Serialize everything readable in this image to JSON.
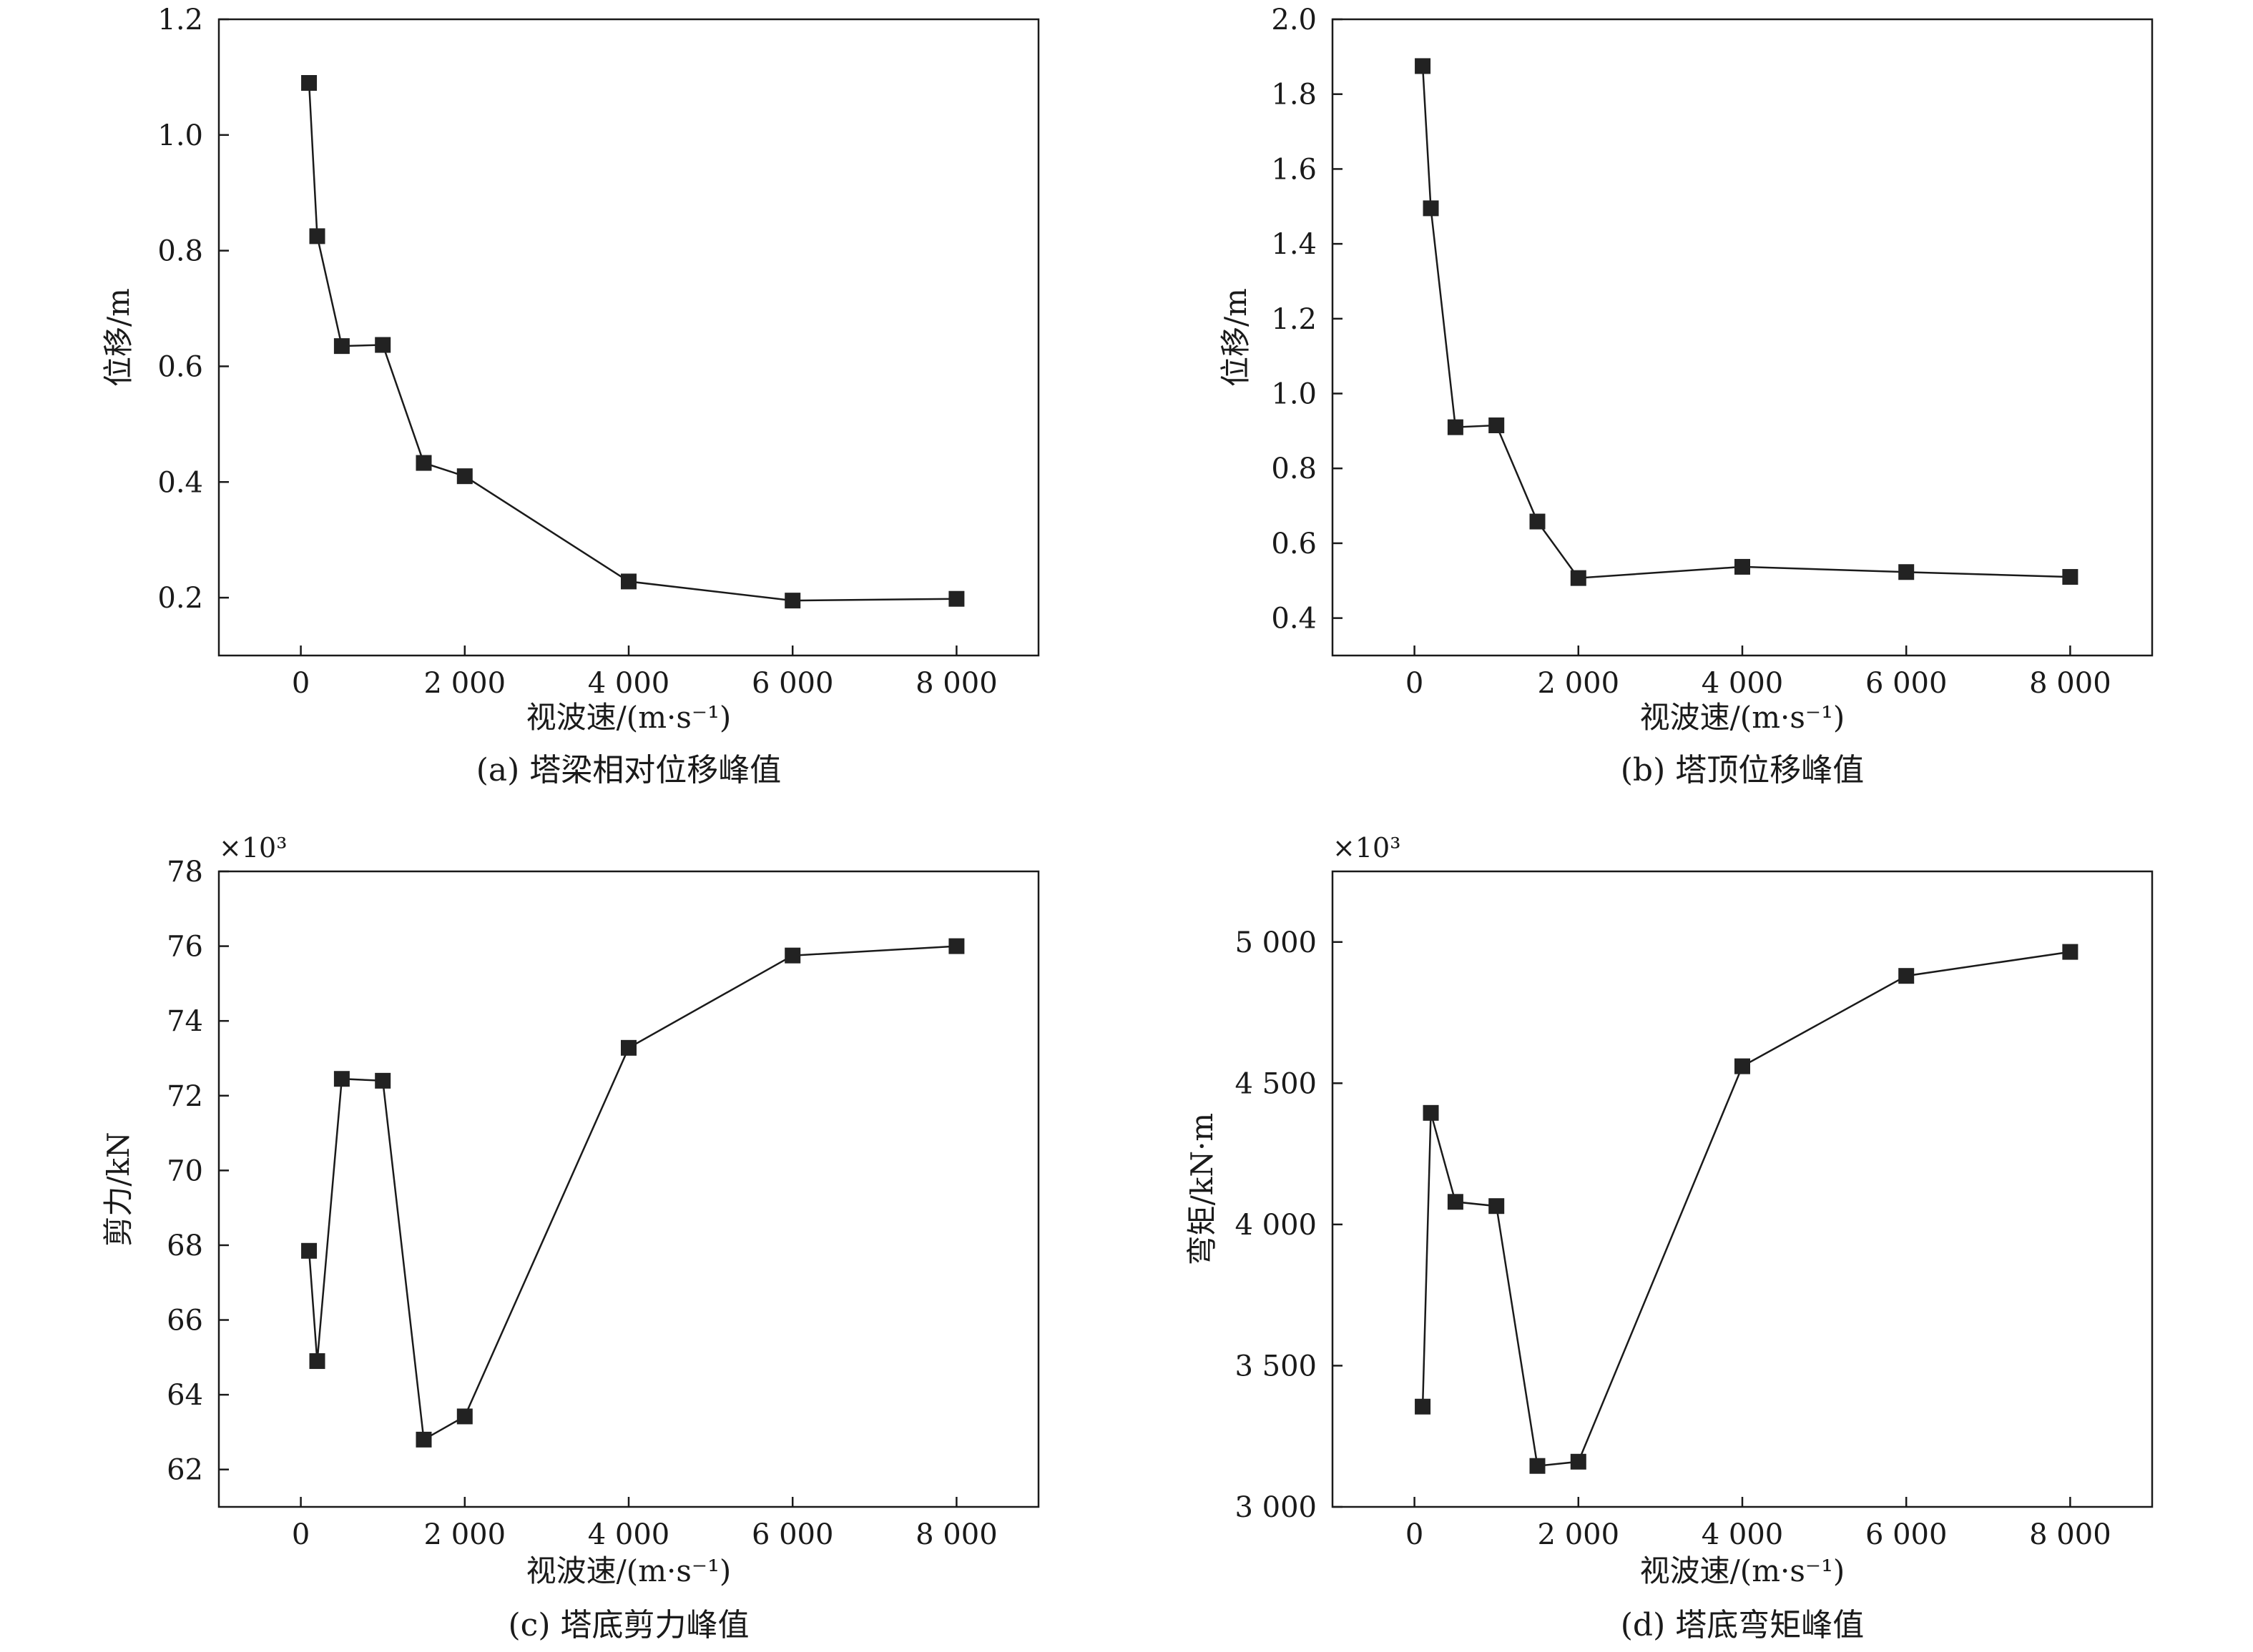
{
  "chart_data": [
    {
      "type": "line",
      "caption": "(a) 塔梁相对位移峰值",
      "xlabel": "视波速/(m·s⁻¹)",
      "ylabel": "位移/m",
      "multiplier": "",
      "xlim": [
        -1000,
        9000
      ],
      "ylim": [
        0.1,
        1.2
      ],
      "xticks": [
        0,
        2000,
        4000,
        6000,
        8000
      ],
      "xtick_labels": [
        "0",
        "2 000",
        "4 000",
        "6 000",
        "8 000"
      ],
      "yticks": [
        0.2,
        0.4,
        0.6,
        0.8,
        1.0,
        1.2
      ],
      "ytick_labels": [
        "0.2",
        "0.4",
        "0.6",
        "0.8",
        "1.0",
        "1.2"
      ],
      "grid": false,
      "color": "#222222",
      "x": [
        100,
        200,
        500,
        1000,
        1500,
        2000,
        4000,
        6000,
        8000
      ],
      "y": [
        1.09,
        0.825,
        0.635,
        0.637,
        0.433,
        0.41,
        0.228,
        0.195,
        0.198
      ]
    },
    {
      "type": "line",
      "caption": "(b) 塔顶位移峰值",
      "xlabel": "视波速/(m·s⁻¹)",
      "ylabel": "位移/m",
      "multiplier": "",
      "xlim": [
        -1000,
        9000
      ],
      "ylim": [
        0.3,
        2.0
      ],
      "xticks": [
        0,
        2000,
        4000,
        6000,
        8000
      ],
      "xtick_labels": [
        "0",
        "2 000",
        "4 000",
        "6 000",
        "8 000"
      ],
      "yticks": [
        0.4,
        0.6,
        0.8,
        1.0,
        1.2,
        1.4,
        1.6,
        1.8,
        2.0
      ],
      "ytick_labels": [
        "0.4",
        "0.6",
        "0.8",
        "1.0",
        "1.2",
        "1.4",
        "1.6",
        "1.8",
        "2.0"
      ],
      "grid": false,
      "color": "#222222",
      "x": [
        100,
        200,
        500,
        1000,
        1500,
        2000,
        4000,
        6000,
        8000
      ],
      "y": [
        1.875,
        1.495,
        0.91,
        0.915,
        0.658,
        0.507,
        0.537,
        0.523,
        0.51
      ]
    },
    {
      "type": "line",
      "caption": "(c) 塔底剪力峰值",
      "xlabel": "视波速/(m·s⁻¹)",
      "ylabel": "剪力/kN",
      "multiplier": "×10³",
      "xlim": [
        -1000,
        9000
      ],
      "ylim": [
        61,
        78
      ],
      "xticks": [
        0,
        2000,
        4000,
        6000,
        8000
      ],
      "xtick_labels": [
        "0",
        "2 000",
        "4 000",
        "6 000",
        "8 000"
      ],
      "yticks": [
        62,
        64,
        66,
        68,
        70,
        72,
        74,
        76,
        78
      ],
      "ytick_labels": [
        "62",
        "64",
        "66",
        "68",
        "70",
        "72",
        "74",
        "76",
        "78"
      ],
      "grid": false,
      "color": "#222222",
      "x": [
        100,
        200,
        500,
        1000,
        1500,
        2000,
        4000,
        6000,
        8000
      ],
      "y": [
        67.85,
        64.9,
        72.45,
        72.4,
        62.8,
        63.42,
        73.28,
        75.75,
        76.0
      ]
    },
    {
      "type": "line",
      "caption": "(d) 塔底弯矩峰值",
      "xlabel": "视波速/(m·s⁻¹)",
      "ylabel": "弯矩/kN·m",
      "multiplier": "×10³",
      "xlim": [
        -1000,
        9000
      ],
      "ylim": [
        3000,
        5250
      ],
      "xticks": [
        0,
        2000,
        4000,
        6000,
        8000
      ],
      "xtick_labels": [
        "0",
        "2 000",
        "4 000",
        "6 000",
        "8 000"
      ],
      "yticks": [
        3000,
        3500,
        4000,
        4500,
        5000
      ],
      "ytick_labels": [
        "3 000",
        "3 500",
        "4 000",
        "4 500",
        "5 000"
      ],
      "grid": false,
      "color": "#222222",
      "x": [
        100,
        200,
        500,
        1000,
        1500,
        2000,
        4000,
        6000,
        8000
      ],
      "y": [
        3355,
        4395,
        4080,
        4065,
        3145,
        3160,
        4560,
        4880,
        4965
      ]
    }
  ]
}
